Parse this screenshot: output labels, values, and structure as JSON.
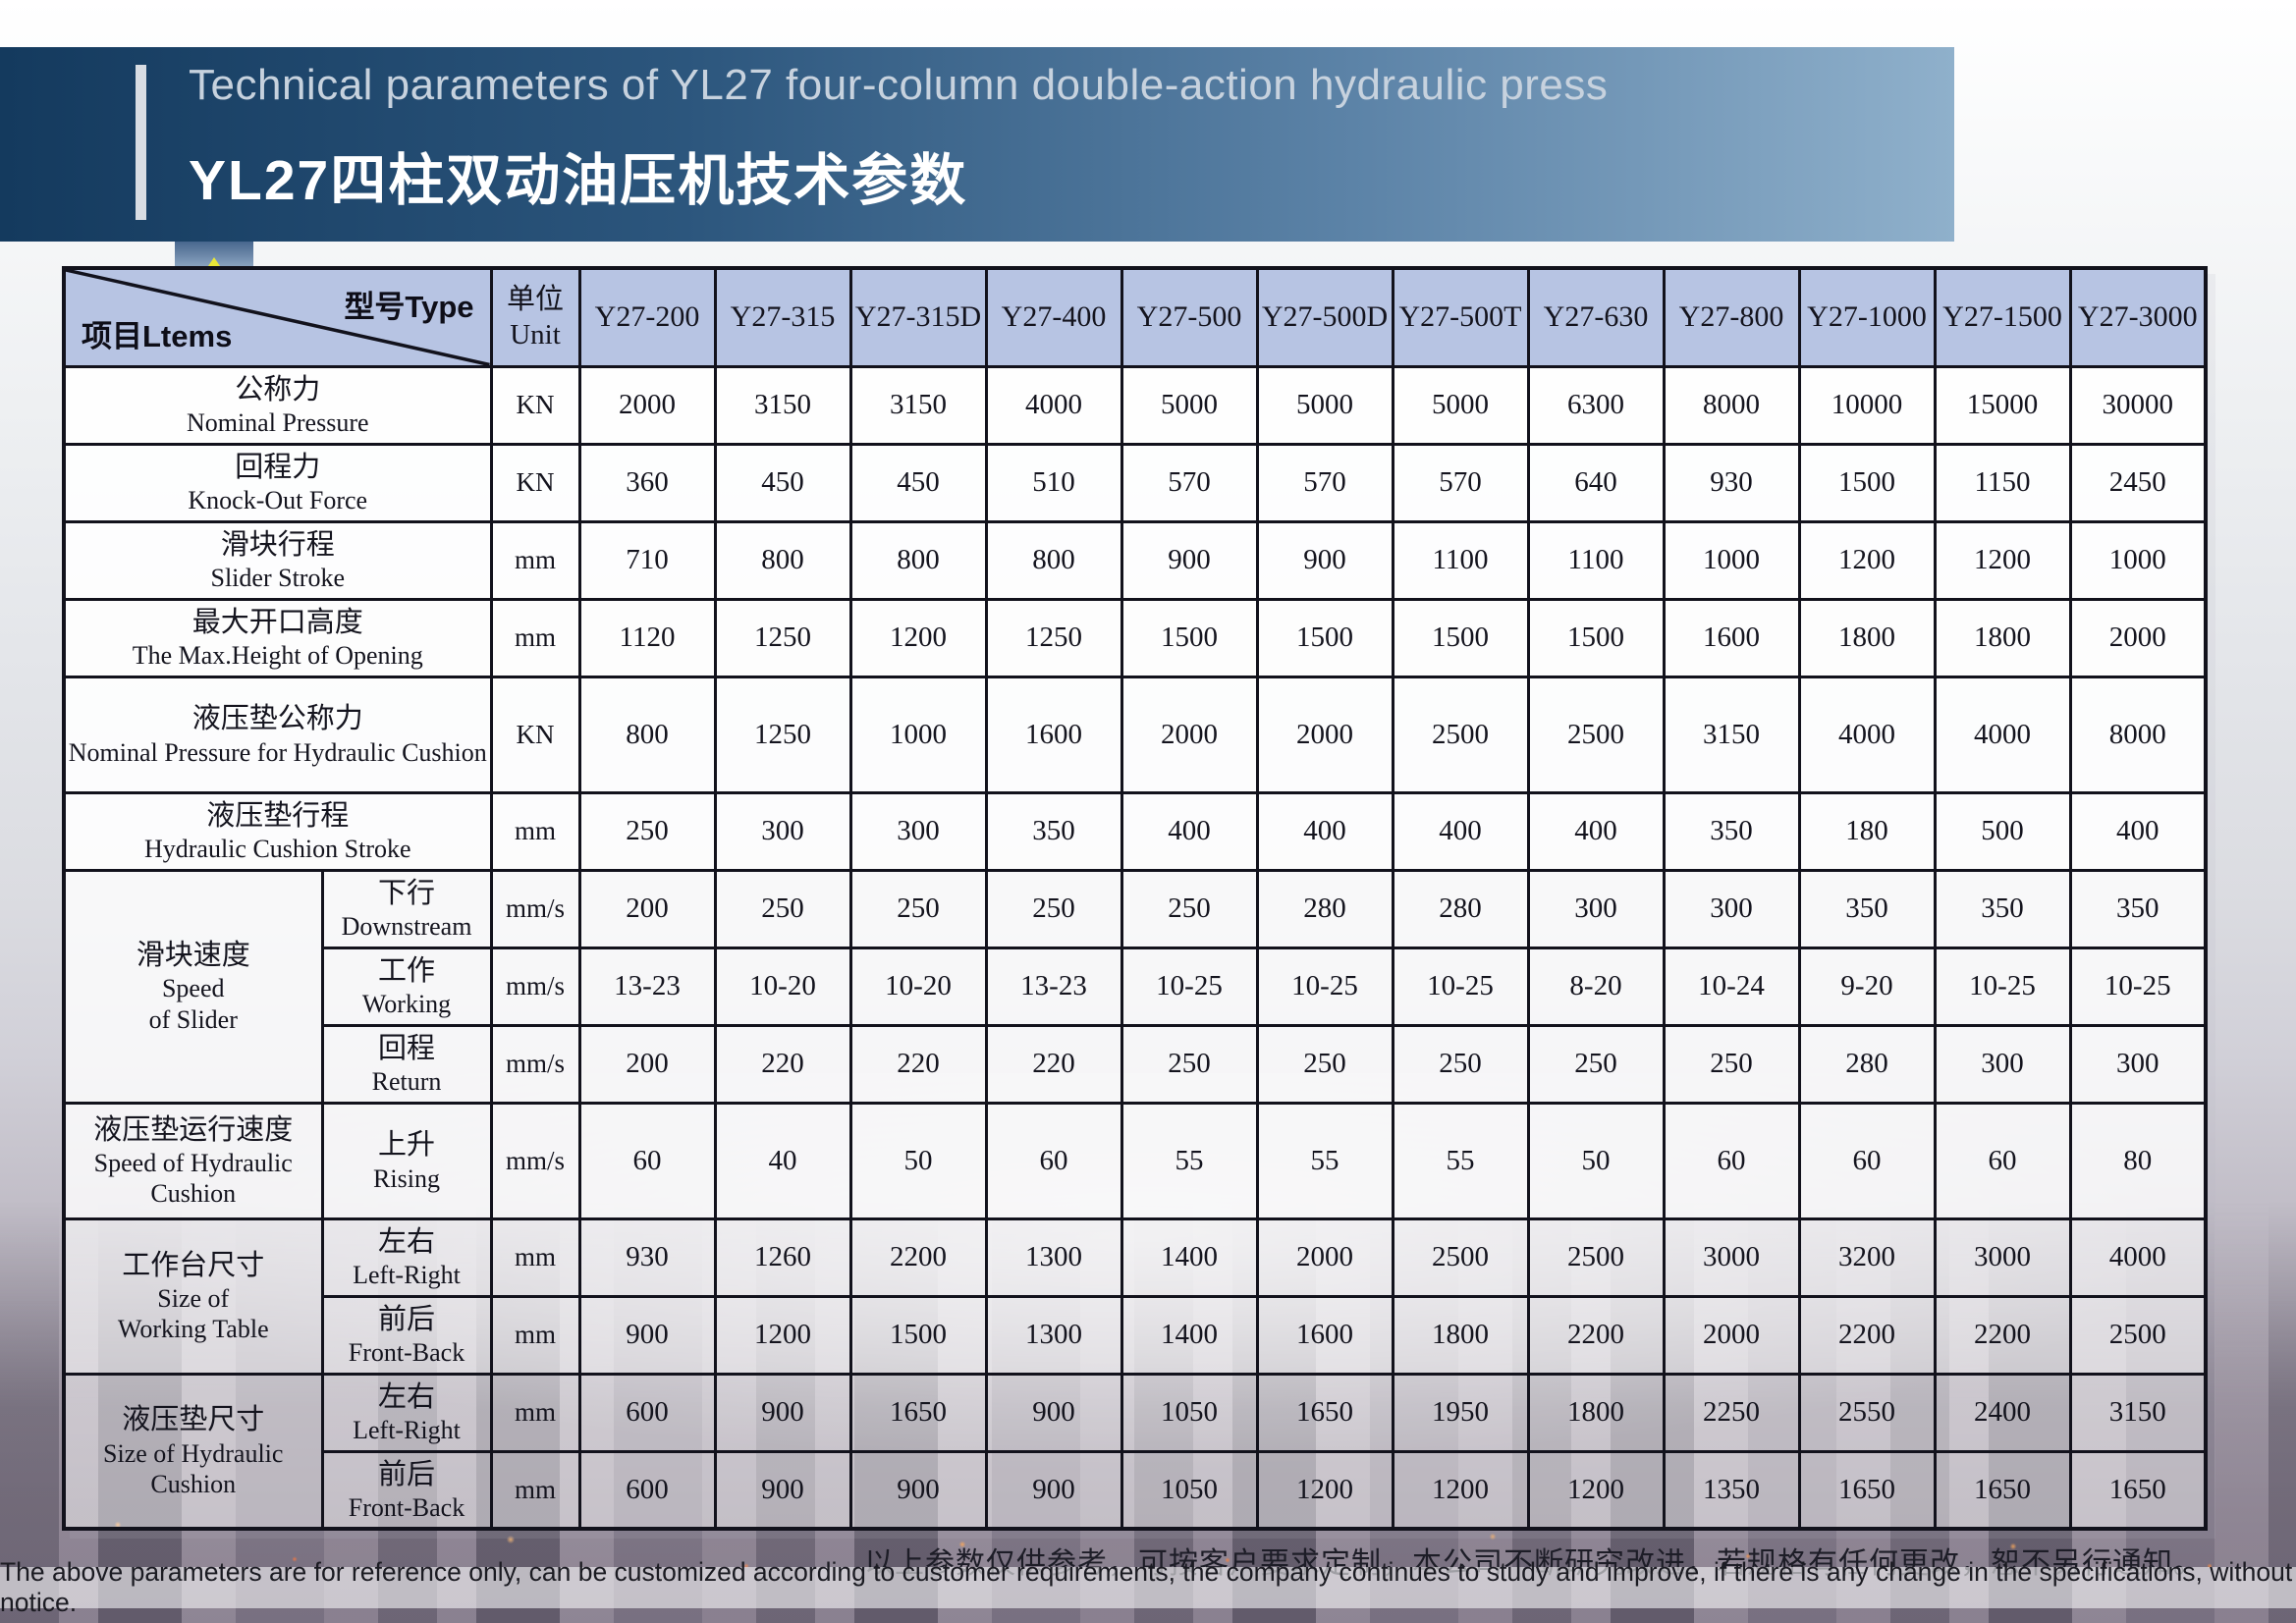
{
  "header": {
    "title_en": "Technical parameters of YL27 four-column double-action hydraulic press",
    "title_zh": "YL27四柱双动油压机技术参数"
  },
  "table": {
    "corner": {
      "type_label": "型号Type",
      "items_label": "项目Ltems"
    },
    "unit_header": {
      "zh": "单位",
      "en": "Unit"
    },
    "models": [
      "Y27-200",
      "Y27-315",
      "Y27-315D",
      "Y27-400",
      "Y27-500",
      "Y27-500D",
      "Y27-500T",
      "Y27-630",
      "Y27-800",
      "Y27-1000",
      "Y27-1500",
      "Y27-3000"
    ],
    "rows": [
      {
        "type": "simple",
        "zh": "公称力",
        "en": "Nominal Pressure",
        "unit": "KN",
        "values": [
          "2000",
          "3150",
          "3150",
          "4000",
          "5000",
          "5000",
          "5000",
          "6300",
          "8000",
          "10000",
          "15000",
          "30000"
        ]
      },
      {
        "type": "simple",
        "zh": "回程力",
        "en": "Knock-Out Force",
        "unit": "KN",
        "values": [
          "360",
          "450",
          "450",
          "510",
          "570",
          "570",
          "570",
          "640",
          "930",
          "1500",
          "1150",
          "2450"
        ]
      },
      {
        "type": "simple",
        "zh": "滑块行程",
        "en": "Slider Stroke",
        "unit": "mm",
        "values": [
          "710",
          "800",
          "800",
          "800",
          "900",
          "900",
          "1100",
          "1100",
          "1000",
          "1200",
          "1200",
          "1000"
        ]
      },
      {
        "type": "simple",
        "zh": "最大开口高度",
        "en": "The Max.Height of Opening",
        "unit": "mm",
        "values": [
          "1120",
          "1250",
          "1200",
          "1250",
          "1500",
          "1500",
          "1500",
          "1500",
          "1600",
          "1800",
          "1800",
          "2000"
        ]
      },
      {
        "type": "simple",
        "zh": "液压垫公称力",
        "en": "Nominal Pressure for Hydraulic Cushion",
        "unit": "KN",
        "values": [
          "800",
          "1250",
          "1000",
          "1600",
          "2000",
          "2000",
          "2500",
          "2500",
          "3150",
          "4000",
          "4000",
          "8000"
        ]
      },
      {
        "type": "simple",
        "zh": "液压垫行程",
        "en": "Hydraulic Cushion Stroke",
        "unit": "mm",
        "values": [
          "250",
          "300",
          "300",
          "350",
          "400",
          "400",
          "400",
          "400",
          "350",
          "180",
          "500",
          "400"
        ]
      },
      {
        "type": "group",
        "group_zh": "滑块速度",
        "group_en": "Speed\nof Slider",
        "span": 3,
        "zh": "下行",
        "en": "Downstream",
        "unit": "mm/s",
        "values": [
          "200",
          "250",
          "250",
          "250",
          "250",
          "280",
          "280",
          "300",
          "300",
          "350",
          "350",
          "350"
        ]
      },
      {
        "type": "sub",
        "zh": "工作",
        "en": "Working",
        "unit": "mm/s",
        "values": [
          "13-23",
          "10-20",
          "10-20",
          "13-23",
          "10-25",
          "10-25",
          "10-25",
          "8-20",
          "10-24",
          "9-20",
          "10-25",
          "10-25"
        ]
      },
      {
        "type": "sub",
        "zh": "回程",
        "en": "Return",
        "unit": "mm/s",
        "values": [
          "200",
          "220",
          "220",
          "220",
          "250",
          "250",
          "250",
          "250",
          "250",
          "280",
          "300",
          "300"
        ]
      },
      {
        "type": "group",
        "group_zh": "液压垫运行速度",
        "group_en": "Speed of Hydraulic\nCushion",
        "span": 1,
        "zh": "上升",
        "en": "Rising",
        "unit": "mm/s",
        "values": [
          "60",
          "40",
          "50",
          "60",
          "55",
          "55",
          "55",
          "50",
          "60",
          "60",
          "60",
          "80"
        ]
      },
      {
        "type": "group",
        "group_zh": "工作台尺寸",
        "group_en": "Size of\nWorking Table",
        "span": 2,
        "zh": "左右",
        "en": "Left-Right",
        "unit": "mm",
        "values": [
          "930",
          "1260",
          "2200",
          "1300",
          "1400",
          "2000",
          "2500",
          "2500",
          "3000",
          "3200",
          "3000",
          "4000"
        ]
      },
      {
        "type": "sub",
        "zh": "前后",
        "en": "Front-Back",
        "unit": "mm",
        "values": [
          "900",
          "1200",
          "1500",
          "1300",
          "1400",
          "1600",
          "1800",
          "2200",
          "2000",
          "2200",
          "2200",
          "2500"
        ]
      },
      {
        "type": "group",
        "group_zh": "液压垫尺寸",
        "group_en": "Size of Hydraulic\nCushion",
        "span": 2,
        "zh": "左右",
        "en": "Left-Right",
        "unit": "mm",
        "values": [
          "600",
          "900",
          "1650",
          "900",
          "1050",
          "1650",
          "1950",
          "1800",
          "2250",
          "2550",
          "2400",
          "3150"
        ]
      },
      {
        "type": "sub",
        "zh": "前后",
        "en": "Front-Back",
        "unit": "mm",
        "values": [
          "600",
          "900",
          "900",
          "900",
          "1050",
          "1200",
          "1200",
          "1200",
          "1350",
          "1650",
          "1650",
          "1650"
        ]
      }
    ]
  },
  "footer": {
    "note_zh": "以上参数仅供参考，可按客户要求定制，本公司不断研究改进，若规格有任何更改，恕不另行通知。",
    "note_en": "The above parameters are for reference only, can be customized according to customer requirements, the company continues to study and improve, if there is any change in the specifications, without notice."
  },
  "colors": {
    "banner_dark": "#143a5e",
    "banner_light": "#8fb0cb",
    "header_bg": "#b7c4e3",
    "accent_yellow": "#e9e738",
    "border": "#12121c"
  }
}
